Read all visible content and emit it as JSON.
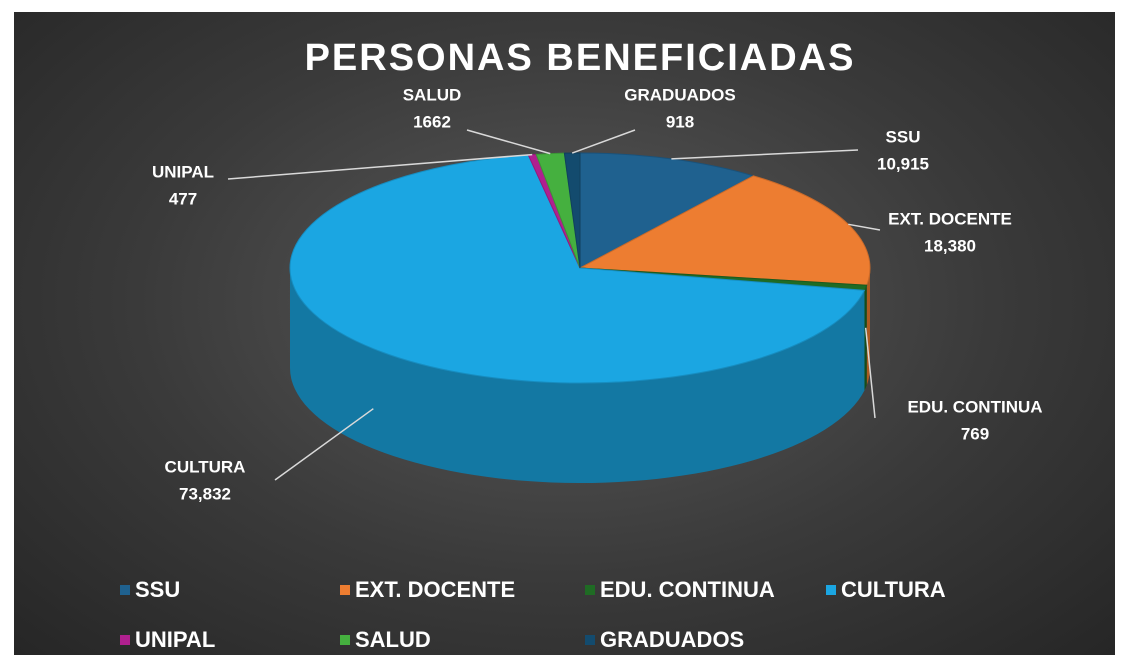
{
  "chart_data": {
    "type": "pie",
    "title": "PERSONAS BENEFICIADAS",
    "categories": [
      "SSU",
      "EXT. DOCENTE",
      "EDU. CONTINUA",
      "CULTURA",
      "UNIPAL",
      "SALUD",
      "GRADUADOS"
    ],
    "values": [
      10915,
      18380,
      769,
      73832,
      477,
      1662,
      918
    ],
    "value_labels": [
      "10,915",
      "18,380",
      "769",
      "73,832",
      "477",
      "1662",
      "918"
    ],
    "colors": [
      "#1f618f",
      "#ed7d31",
      "#1f6b24",
      "#1ba6e2",
      "#b0208f",
      "#45b03f",
      "#134b6e"
    ],
    "legend": "bottom"
  }
}
